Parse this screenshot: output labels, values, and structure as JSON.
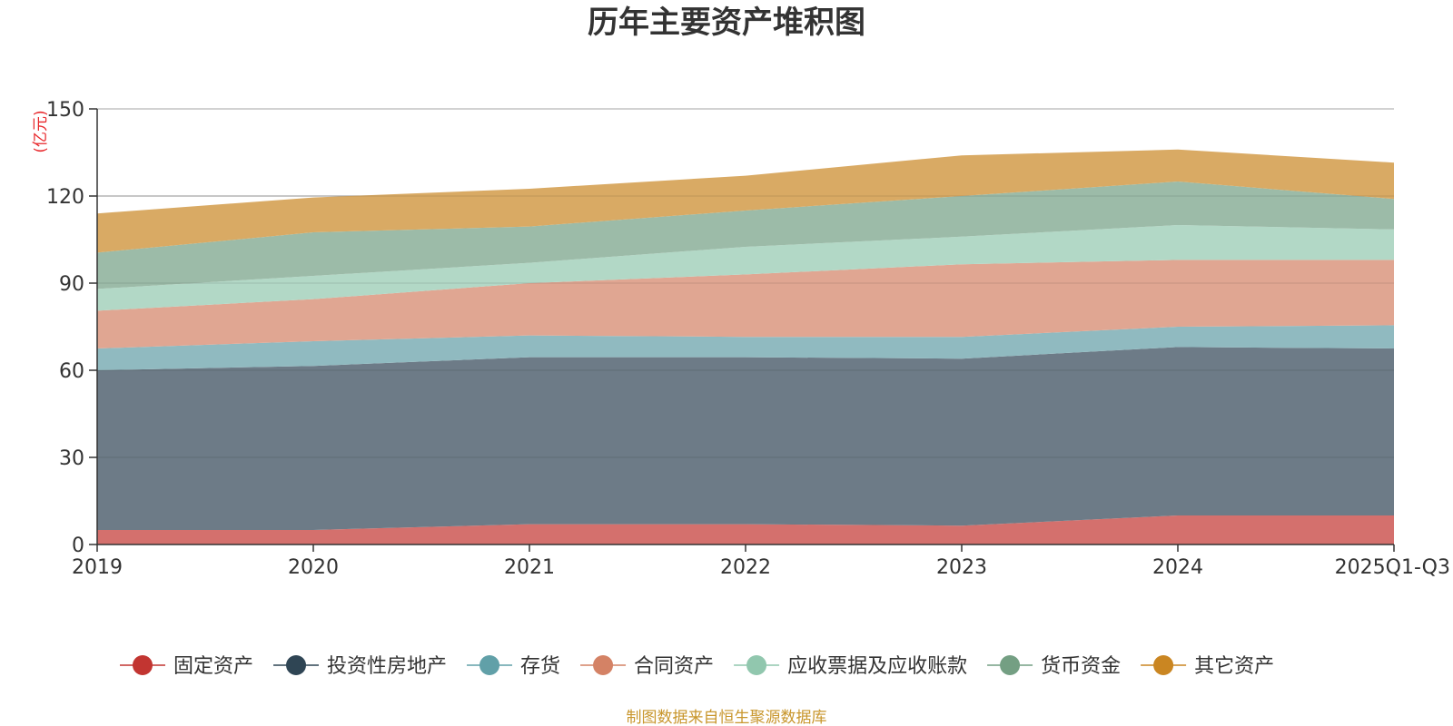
{
  "chart_data": {
    "type": "area",
    "stacked": true,
    "title": "历年主要资产堆积图",
    "unit_label": "(亿元)",
    "categories": [
      "2019",
      "2020",
      "2021",
      "2022",
      "2023",
      "2024",
      "2025Q1-Q3"
    ],
    "ylim": [
      0,
      150
    ],
    "yticks": [
      0,
      30,
      60,
      90,
      120,
      150
    ],
    "grid": true,
    "legend_position": "bottom",
    "series": [
      {
        "name": "固定资产",
        "color": "#c23531",
        "fill": "#d4706d",
        "values": [
          5,
          5,
          7,
          7,
          6.5,
          10,
          10
        ]
      },
      {
        "name": "投资性房地产",
        "color": "#2f4554",
        "fill": "#6d7b87",
        "values": [
          55,
          56.5,
          57.5,
          57.5,
          57.5,
          58,
          57.5
        ]
      },
      {
        "name": "存货",
        "color": "#61a0a8",
        "fill": "#90bac0",
        "values": [
          7.5,
          8.5,
          7.5,
          7,
          7.5,
          7,
          8
        ]
      },
      {
        "name": "合同资产",
        "color": "#d48265",
        "fill": "#e0a692",
        "values": [
          13,
          14.5,
          18,
          21.5,
          25,
          23,
          22.5
        ]
      },
      {
        "name": "应收票据及应收账款",
        "color": "#91c7ae",
        "fill": "#b2d8c6",
        "values": [
          7.5,
          8,
          7,
          9.5,
          9.5,
          12,
          10.5
        ]
      },
      {
        "name": "货币资金",
        "color": "#749f83",
        "fill": "#9cbba8",
        "values": [
          12.5,
          15,
          12.5,
          12.5,
          14,
          15,
          10.5
        ]
      },
      {
        "name": "其它资产",
        "color": "#ca8622",
        "fill": "#d9aa64",
        "values": [
          13.5,
          12,
          13,
          12,
          14,
          11,
          12.5
        ]
      }
    ],
    "source_note": "制图数据来自恒生聚源数据库"
  }
}
